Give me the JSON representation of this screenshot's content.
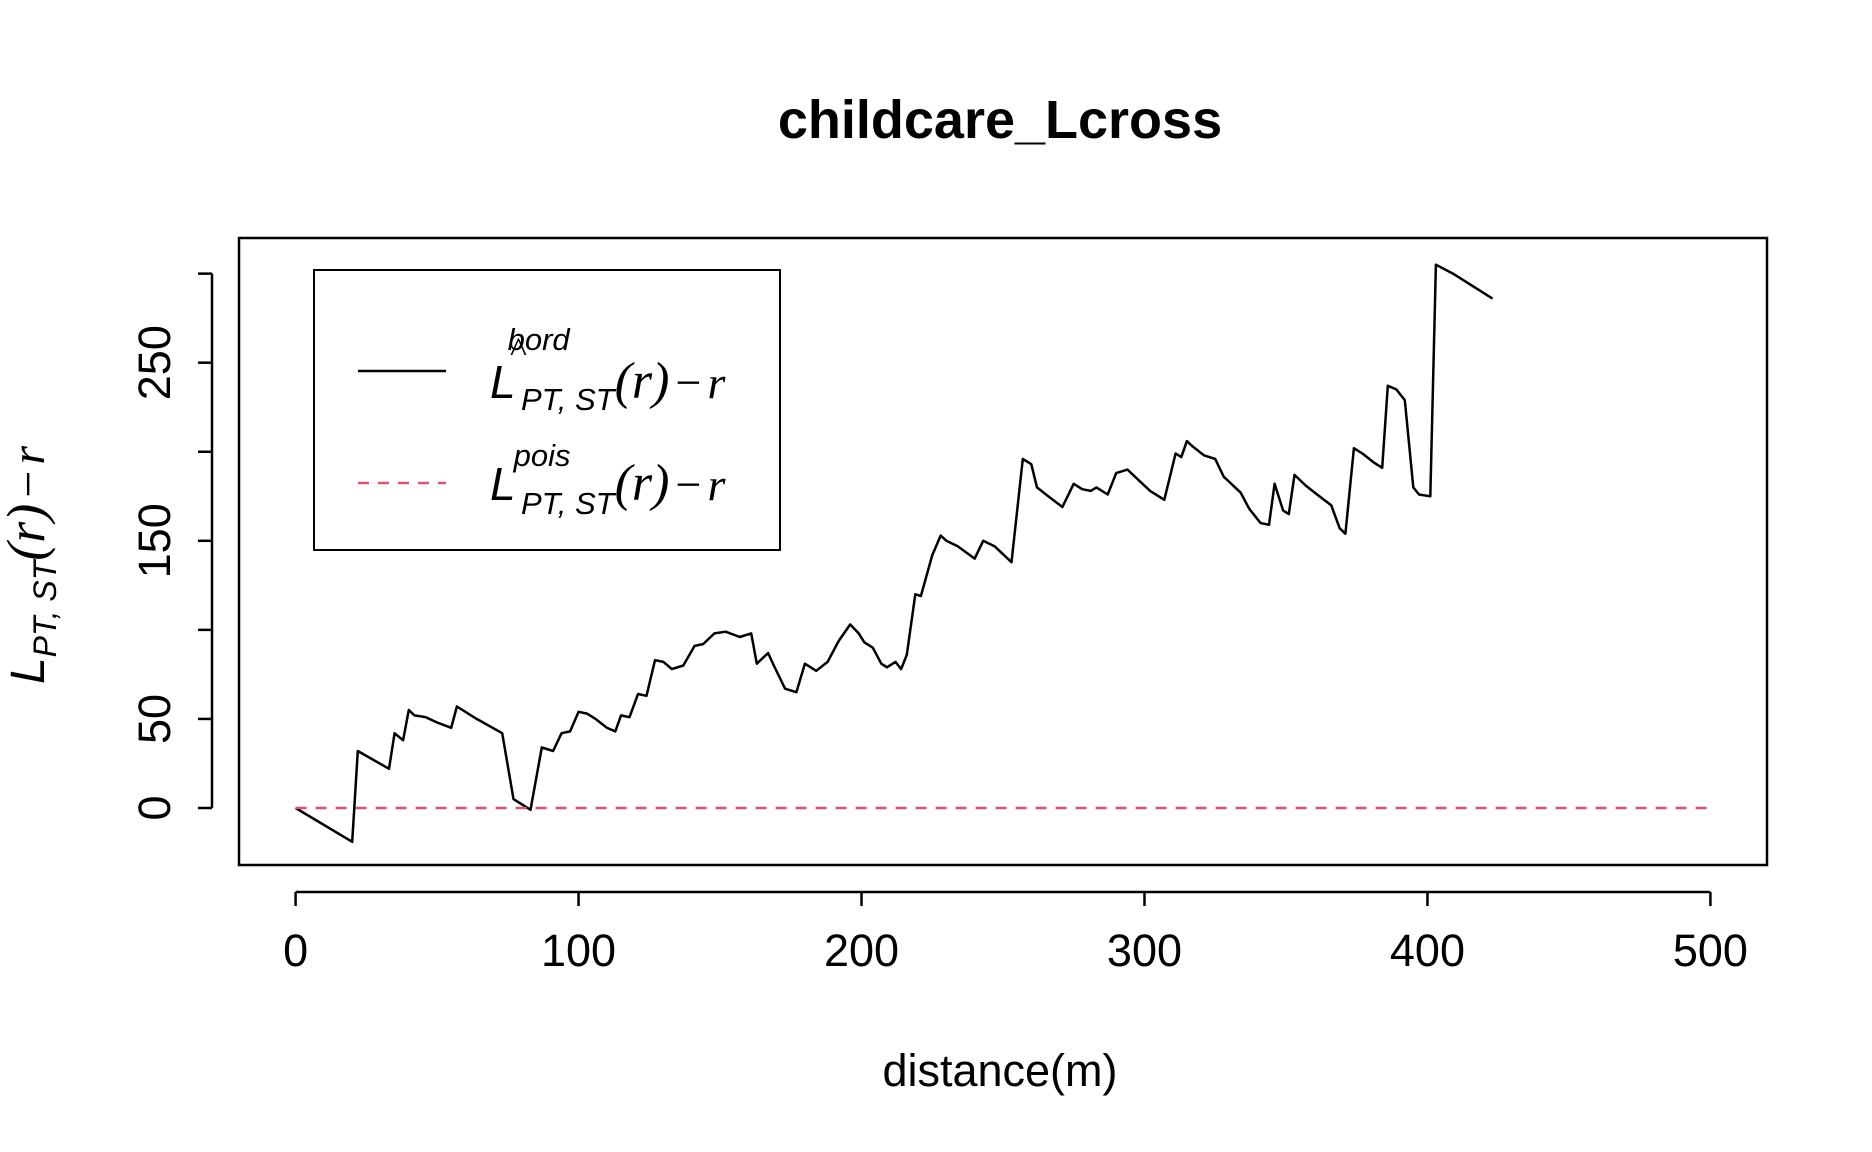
{
  "chart_data": {
    "type": "line",
    "title": "childcare_Lcross",
    "xlabel": "distance(m)",
    "ylabel": {
      "main": "L",
      "subscript": "PT, ST",
      "tail": "(r)",
      "minus": "−",
      "var": "r"
    },
    "xlim": [
      -20,
      520
    ],
    "ylim": [
      -32,
      320
    ],
    "x_ticks": [
      0,
      100,
      200,
      300,
      400,
      500
    ],
    "y_ticks": [
      0,
      50,
      100,
      150,
      200,
      250,
      300
    ],
    "y_tick_labels": [
      "0",
      "50",
      "",
      "150",
      "",
      "250",
      ""
    ],
    "grid": false,
    "legend_position": "top-left",
    "series": [
      {
        "legend": {
          "symbol": "L",
          "hat": "^",
          "superscript": "bord",
          "subscript": "PT, ST",
          "tail": "(r)",
          "minus": "−",
          "var": "r"
        },
        "color": "#000000",
        "dash": "solid",
        "x": [
          0,
          20,
          22,
          33,
          35,
          38,
          40,
          42,
          46,
          50,
          55,
          57,
          64,
          73,
          77,
          83,
          87,
          91,
          94,
          97,
          100,
          103,
          106,
          110,
          113,
          115,
          118,
          121,
          124,
          127,
          130,
          133,
          137,
          141,
          144,
          148,
          152,
          157,
          161,
          163,
          167,
          169,
          173,
          177,
          180,
          184,
          188,
          192,
          196,
          199,
          201,
          204,
          207,
          209,
          212,
          214,
          216,
          219,
          221,
          225,
          228,
          230,
          234,
          240,
          243,
          247,
          253,
          257,
          260,
          262,
          266,
          271,
          275,
          278,
          281,
          283,
          287,
          290,
          294,
          298,
          302,
          307,
          311,
          313,
          315,
          317,
          321,
          325,
          328,
          330,
          334,
          337,
          341,
          344,
          346,
          349,
          351,
          353,
          357,
          361,
          366,
          369,
          371,
          374,
          377,
          381,
          384,
          386,
          389,
          392,
          395,
          397,
          401,
          403,
          409,
          423
        ],
        "y": [
          0,
          -19,
          32,
          22,
          42,
          38,
          55,
          52,
          51,
          48,
          45,
          57,
          50,
          42,
          5,
          -1,
          34,
          32,
          42,
          43,
          54,
          53,
          50,
          45,
          43,
          52,
          51,
          64,
          63,
          83,
          82,
          78,
          80,
          91,
          92,
          98,
          99,
          96,
          98,
          81,
          87,
          80,
          67,
          65,
          81,
          77,
          82,
          94,
          103,
          98,
          93,
          90,
          81,
          79,
          82,
          78,
          86,
          120,
          119,
          142,
          153,
          150,
          147,
          140,
          150,
          147,
          138,
          196,
          193,
          180,
          175,
          169,
          182,
          179,
          178,
          180,
          176,
          188,
          190,
          184,
          178,
          173,
          199,
          197,
          206,
          203,
          198,
          196,
          186,
          183,
          177,
          168,
          160,
          159,
          182,
          167,
          165,
          187,
          181,
          176,
          170,
          157,
          154,
          202,
          199,
          194,
          191,
          237,
          235,
          229,
          180,
          176,
          175,
          305,
          300,
          286
        ]
      },
      {
        "legend": {
          "symbol": "L",
          "superscript": "pois",
          "subscript": "PT, ST",
          "tail": "(r)",
          "minus": "−",
          "var": "r"
        },
        "color": "#DF536B",
        "dash": "dashed",
        "x": [
          0,
          500
        ],
        "y": [
          0,
          0
        ]
      }
    ]
  }
}
